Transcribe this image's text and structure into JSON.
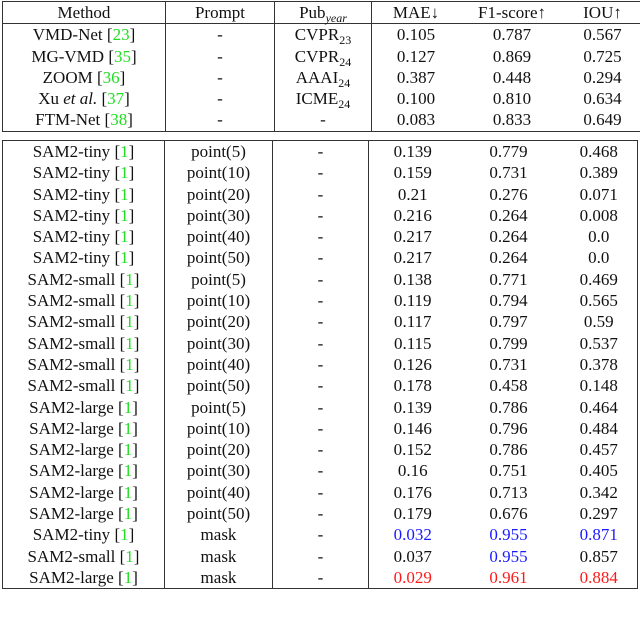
{
  "colors": {
    "ref": "#22dd22",
    "second_best": "#1a1aff",
    "best": "#ff1a1a"
  },
  "header": {
    "method": "Method",
    "prompt": "Prompt",
    "pub": "Pub",
    "pub_sub": "year",
    "mae": "MAE↓",
    "f1": "F1-score↑",
    "iou": "IOU↑"
  },
  "table1": [
    {
      "method": "VMD-Net",
      "method_em": "",
      "ref": "23",
      "prompt": "-",
      "pub": "CVPR",
      "pub_sub": "23",
      "mae": "0.105",
      "f1": "0.787",
      "iou": "0.567"
    },
    {
      "method": "MG-VMD",
      "method_em": "",
      "ref": "35",
      "prompt": "-",
      "pub": "CVPR",
      "pub_sub": "24",
      "mae": "0.127",
      "f1": "0.869",
      "iou": "0.725"
    },
    {
      "method": "ZOOM",
      "method_em": "",
      "ref": "36",
      "prompt": "-",
      "pub": "AAAI",
      "pub_sub": "24",
      "mae": "0.387",
      "f1": "0.448",
      "iou": "0.294"
    },
    {
      "method": "Xu",
      "method_em": "et al.",
      "ref": "37",
      "prompt": "-",
      "pub": "ICME",
      "pub_sub": "24",
      "mae": "0.100",
      "f1": "0.810",
      "iou": "0.634"
    },
    {
      "method": "FTM-Net",
      "method_em": "",
      "ref": "38",
      "prompt": "-",
      "pub": "-",
      "pub_sub": "",
      "mae": "0.083",
      "f1": "0.833",
      "iou": "0.649"
    }
  ],
  "table2": [
    {
      "method": "SAM2-tiny",
      "ref": "1",
      "prompt": "point(5)",
      "pub": "-",
      "mae": "0.139",
      "f1": "0.779",
      "iou": "0.468",
      "mae_c": "",
      "f1_c": "",
      "iou_c": ""
    },
    {
      "method": "SAM2-tiny",
      "ref": "1",
      "prompt": "point(10)",
      "pub": "-",
      "mae": "0.159",
      "f1": "0.731",
      "iou": "0.389",
      "mae_c": "",
      "f1_c": "",
      "iou_c": ""
    },
    {
      "method": "SAM2-tiny",
      "ref": "1",
      "prompt": "point(20)",
      "pub": "-",
      "mae": "0.21",
      "f1": "0.276",
      "iou": "0.071",
      "mae_c": "",
      "f1_c": "",
      "iou_c": ""
    },
    {
      "method": "SAM2-tiny",
      "ref": "1",
      "prompt": "point(30)",
      "pub": "-",
      "mae": "0.216",
      "f1": "0.264",
      "iou": "0.008",
      "mae_c": "",
      "f1_c": "",
      "iou_c": ""
    },
    {
      "method": "SAM2-tiny",
      "ref": "1",
      "prompt": "point(40)",
      "pub": "-",
      "mae": "0.217",
      "f1": "0.264",
      "iou": "0.0",
      "mae_c": "",
      "f1_c": "",
      "iou_c": ""
    },
    {
      "method": "SAM2-tiny",
      "ref": "1",
      "prompt": "point(50)",
      "pub": "-",
      "mae": "0.217",
      "f1": "0.264",
      "iou": "0.0",
      "mae_c": "",
      "f1_c": "",
      "iou_c": ""
    },
    {
      "method": "SAM2-small",
      "ref": "1",
      "prompt": "point(5)",
      "pub": "-",
      "mae": "0.138",
      "f1": "0.771",
      "iou": "0.469",
      "mae_c": "",
      "f1_c": "",
      "iou_c": ""
    },
    {
      "method": "SAM2-small",
      "ref": "1",
      "prompt": "point(10)",
      "pub": "-",
      "mae": "0.119",
      "f1": "0.794",
      "iou": "0.565",
      "mae_c": "",
      "f1_c": "",
      "iou_c": ""
    },
    {
      "method": "SAM2-small",
      "ref": "1",
      "prompt": "point(20)",
      "pub": "-",
      "mae": "0.117",
      "f1": "0.797",
      "iou": "0.59",
      "mae_c": "",
      "f1_c": "",
      "iou_c": ""
    },
    {
      "method": "SAM2-small",
      "ref": "1",
      "prompt": "point(30)",
      "pub": "-",
      "mae": "0.115",
      "f1": "0.799",
      "iou": "0.537",
      "mae_c": "",
      "f1_c": "",
      "iou_c": ""
    },
    {
      "method": "SAM2-small",
      "ref": "1",
      "prompt": "point(40)",
      "pub": "-",
      "mae": "0.126",
      "f1": "0.731",
      "iou": "0.378",
      "mae_c": "",
      "f1_c": "",
      "iou_c": ""
    },
    {
      "method": "SAM2-small",
      "ref": "1",
      "prompt": "point(50)",
      "pub": "-",
      "mae": "0.178",
      "f1": "0.458",
      "iou": "0.148",
      "mae_c": "",
      "f1_c": "",
      "iou_c": ""
    },
    {
      "method": "SAM2-large",
      "ref": "1",
      "prompt": "point(5)",
      "pub": "-",
      "mae": "0.139",
      "f1": "0.786",
      "iou": "0.464",
      "mae_c": "",
      "f1_c": "",
      "iou_c": ""
    },
    {
      "method": "SAM2-large",
      "ref": "1",
      "prompt": "point(10)",
      "pub": "-",
      "mae": "0.146",
      "f1": "0.796",
      "iou": "0.484",
      "mae_c": "",
      "f1_c": "",
      "iou_c": ""
    },
    {
      "method": "SAM2-large",
      "ref": "1",
      "prompt": "point(20)",
      "pub": "-",
      "mae": "0.152",
      "f1": "0.786",
      "iou": "0.457",
      "mae_c": "",
      "f1_c": "",
      "iou_c": ""
    },
    {
      "method": "SAM2-large",
      "ref": "1",
      "prompt": "point(30)",
      "pub": "-",
      "mae": "0.16",
      "f1": "0.751",
      "iou": "0.405",
      "mae_c": "",
      "f1_c": "",
      "iou_c": ""
    },
    {
      "method": "SAM2-large",
      "ref": "1",
      "prompt": "point(40)",
      "pub": "-",
      "mae": "0.176",
      "f1": "0.713",
      "iou": "0.342",
      "mae_c": "",
      "f1_c": "",
      "iou_c": ""
    },
    {
      "method": "SAM2-large",
      "ref": "1",
      "prompt": "point(50)",
      "pub": "-",
      "mae": "0.179",
      "f1": "0.676",
      "iou": "0.297",
      "mae_c": "",
      "f1_c": "",
      "iou_c": ""
    },
    {
      "method": "SAM2-tiny",
      "ref": "1",
      "prompt": "mask",
      "pub": "-",
      "mae": "0.032",
      "f1": "0.955",
      "iou": "0.871",
      "mae_c": "blue",
      "f1_c": "blue",
      "iou_c": "blue"
    },
    {
      "method": "SAM2-small",
      "ref": "1",
      "prompt": "mask",
      "pub": "-",
      "mae": "0.037",
      "f1": "0.955",
      "iou": "0.857",
      "mae_c": "",
      "f1_c": "blue",
      "iou_c": ""
    },
    {
      "method": "SAM2-large",
      "ref": "1",
      "prompt": "mask",
      "pub": "-",
      "mae": "0.029",
      "f1": "0.961",
      "iou": "0.884",
      "mae_c": "red",
      "f1_c": "red",
      "iou_c": "red"
    }
  ]
}
